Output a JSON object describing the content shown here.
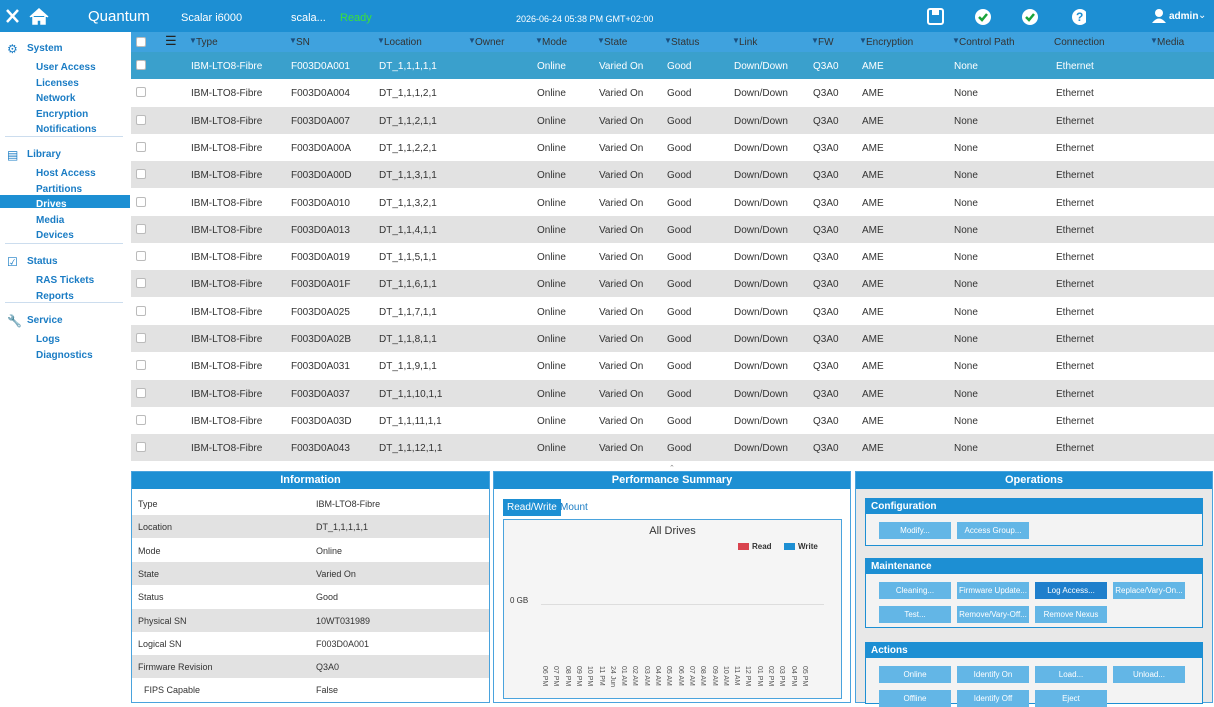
{
  "header": {
    "product": "Quantum",
    "model": "Scalar i6000",
    "host": "scala...",
    "status": "Ready",
    "datetime": "2026-06-24 05:38 PM GMT+02:00",
    "user": "admin"
  },
  "sidebar": [
    {
      "title": "System",
      "items": [
        "User Access",
        "Licenses",
        "Network",
        "Encryption",
        "Notifications"
      ]
    },
    {
      "title": "Library",
      "items": [
        "Host Access",
        "Partitions",
        "Drives",
        "Media",
        "Devices"
      ]
    },
    {
      "title": "Status",
      "items": [
        "RAS Tickets",
        "Reports"
      ]
    },
    {
      "title": "Service",
      "items": [
        "Logs",
        "Diagnostics"
      ]
    }
  ],
  "table": {
    "columns": [
      "Type",
      "SN",
      "Location",
      "Owner",
      "Mode",
      "State",
      "Status",
      "Link",
      "FW",
      "Encryption",
      "Control Path",
      "Connection",
      "Media"
    ],
    "rows": [
      {
        "type": "IBM-LTO8-Fibre",
        "sn": "F003D0A001",
        "location": "DT_1,1,1,1,1",
        "mode": "Online",
        "state": "Varied On",
        "status": "Good",
        "link": "Down/Down",
        "fw": "Q3A0",
        "encryption": "AME",
        "control_path": "None",
        "connection": "Ethernet"
      },
      {
        "type": "IBM-LTO8-Fibre",
        "sn": "F003D0A004",
        "location": "DT_1,1,1,2,1",
        "mode": "Online",
        "state": "Varied On",
        "status": "Good",
        "link": "Down/Down",
        "fw": "Q3A0",
        "encryption": "AME",
        "control_path": "None",
        "connection": "Ethernet"
      },
      {
        "type": "IBM-LTO8-Fibre",
        "sn": "F003D0A007",
        "location": "DT_1,1,2,1,1",
        "mode": "Online",
        "state": "Varied On",
        "status": "Good",
        "link": "Down/Down",
        "fw": "Q3A0",
        "encryption": "AME",
        "control_path": "None",
        "connection": "Ethernet"
      },
      {
        "type": "IBM-LTO8-Fibre",
        "sn": "F003D0A00A",
        "location": "DT_1,1,2,2,1",
        "mode": "Online",
        "state": "Varied On",
        "status": "Good",
        "link": "Down/Down",
        "fw": "Q3A0",
        "encryption": "AME",
        "control_path": "None",
        "connection": "Ethernet"
      },
      {
        "type": "IBM-LTO8-Fibre",
        "sn": "F003D0A00D",
        "location": "DT_1,1,3,1,1",
        "mode": "Online",
        "state": "Varied On",
        "status": "Good",
        "link": "Down/Down",
        "fw": "Q3A0",
        "encryption": "AME",
        "control_path": "None",
        "connection": "Ethernet"
      },
      {
        "type": "IBM-LTO8-Fibre",
        "sn": "F003D0A010",
        "location": "DT_1,1,3,2,1",
        "mode": "Online",
        "state": "Varied On",
        "status": "Good",
        "link": "Down/Down",
        "fw": "Q3A0",
        "encryption": "AME",
        "control_path": "None",
        "connection": "Ethernet"
      },
      {
        "type": "IBM-LTO8-Fibre",
        "sn": "F003D0A013",
        "location": "DT_1,1,4,1,1",
        "mode": "Online",
        "state": "Varied On",
        "status": "Good",
        "link": "Down/Down",
        "fw": "Q3A0",
        "encryption": "AME",
        "control_path": "None",
        "connection": "Ethernet"
      },
      {
        "type": "IBM-LTO8-Fibre",
        "sn": "F003D0A019",
        "location": "DT_1,1,5,1,1",
        "mode": "Online",
        "state": "Varied On",
        "status": "Good",
        "link": "Down/Down",
        "fw": "Q3A0",
        "encryption": "AME",
        "control_path": "None",
        "connection": "Ethernet"
      },
      {
        "type": "IBM-LTO8-Fibre",
        "sn": "F003D0A01F",
        "location": "DT_1,1,6,1,1",
        "mode": "Online",
        "state": "Varied On",
        "status": "Good",
        "link": "Down/Down",
        "fw": "Q3A0",
        "encryption": "AME",
        "control_path": "None",
        "connection": "Ethernet"
      },
      {
        "type": "IBM-LTO8-Fibre",
        "sn": "F003D0A025",
        "location": "DT_1,1,7,1,1",
        "mode": "Online",
        "state": "Varied On",
        "status": "Good",
        "link": "Down/Down",
        "fw": "Q3A0",
        "encryption": "AME",
        "control_path": "None",
        "connection": "Ethernet"
      },
      {
        "type": "IBM-LTO8-Fibre",
        "sn": "F003D0A02B",
        "location": "DT_1,1,8,1,1",
        "mode": "Online",
        "state": "Varied On",
        "status": "Good",
        "link": "Down/Down",
        "fw": "Q3A0",
        "encryption": "AME",
        "control_path": "None",
        "connection": "Ethernet"
      },
      {
        "type": "IBM-LTO8-Fibre",
        "sn": "F003D0A031",
        "location": "DT_1,1,9,1,1",
        "mode": "Online",
        "state": "Varied On",
        "status": "Good",
        "link": "Down/Down",
        "fw": "Q3A0",
        "encryption": "AME",
        "control_path": "None",
        "connection": "Ethernet"
      },
      {
        "type": "IBM-LTO8-Fibre",
        "sn": "F003D0A037",
        "location": "DT_1,1,10,1,1",
        "mode": "Online",
        "state": "Varied On",
        "status": "Good",
        "link": "Down/Down",
        "fw": "Q3A0",
        "encryption": "AME",
        "control_path": "None",
        "connection": "Ethernet"
      },
      {
        "type": "IBM-LTO8-Fibre",
        "sn": "F003D0A03D",
        "location": "DT_1,1,11,1,1",
        "mode": "Online",
        "state": "Varied On",
        "status": "Good",
        "link": "Down/Down",
        "fw": "Q3A0",
        "encryption": "AME",
        "control_path": "None",
        "connection": "Ethernet"
      },
      {
        "type": "IBM-LTO8-Fibre",
        "sn": "F003D0A043",
        "location": "DT_1,1,12,1,1",
        "mode": "Online",
        "state": "Varied On",
        "status": "Good",
        "link": "Down/Down",
        "fw": "Q3A0",
        "encryption": "AME",
        "control_path": "None",
        "connection": "Ethernet"
      }
    ]
  },
  "information": {
    "title": "Information",
    "rows": [
      [
        "Type",
        "IBM-LTO8-Fibre"
      ],
      [
        "Location",
        "DT_1,1,1,1,1"
      ],
      [
        "Mode",
        "Online"
      ],
      [
        "State",
        "Varied On"
      ],
      [
        "Status",
        "Good"
      ],
      [
        "Physical SN",
        "10WT031989"
      ],
      [
        "Logical SN",
        "F003D0A001"
      ],
      [
        "Firmware Revision",
        "Q3A0"
      ],
      [
        "FIPS Capable",
        "False"
      ]
    ]
  },
  "performance": {
    "title": "Performance Summary",
    "tabs": [
      "Read/Write",
      "Mount"
    ],
    "chart_title": "All Drives",
    "legend": [
      {
        "name": "Read",
        "color": "#d9434e"
      },
      {
        "name": "Write",
        "color": "#1d8fd3"
      }
    ],
    "y_label": "0 GB",
    "x_labels": [
      "06 PM",
      "07 PM",
      "08 PM",
      "09 PM",
      "10 PM",
      "11 PM",
      "24 Jun",
      "01 AM",
      "02 AM",
      "03 AM",
      "04 AM",
      "05 AM",
      "06 AM",
      "07 AM",
      "08 AM",
      "09 AM",
      "10 AM",
      "11 AM",
      "12 PM",
      "01 PM",
      "02 PM",
      "03 PM",
      "04 PM",
      "05 PM"
    ]
  },
  "operations": {
    "title": "Operations",
    "groups": [
      {
        "title": "Configuration",
        "buttons": [
          "Modify...",
          "Access Group..."
        ]
      },
      {
        "title": "Maintenance",
        "buttons": [
          "Cleaning...",
          "Firmware Update...",
          "Log Access...",
          "Replace/Vary-On...",
          "Test...",
          "Remove/Vary-Off...",
          "Remove Nexus"
        ]
      },
      {
        "title": "Actions",
        "buttons": [
          "Online",
          "Identify On",
          "Load...",
          "Unload...",
          "Offline",
          "Identify Off",
          "Eject"
        ]
      }
    ]
  }
}
